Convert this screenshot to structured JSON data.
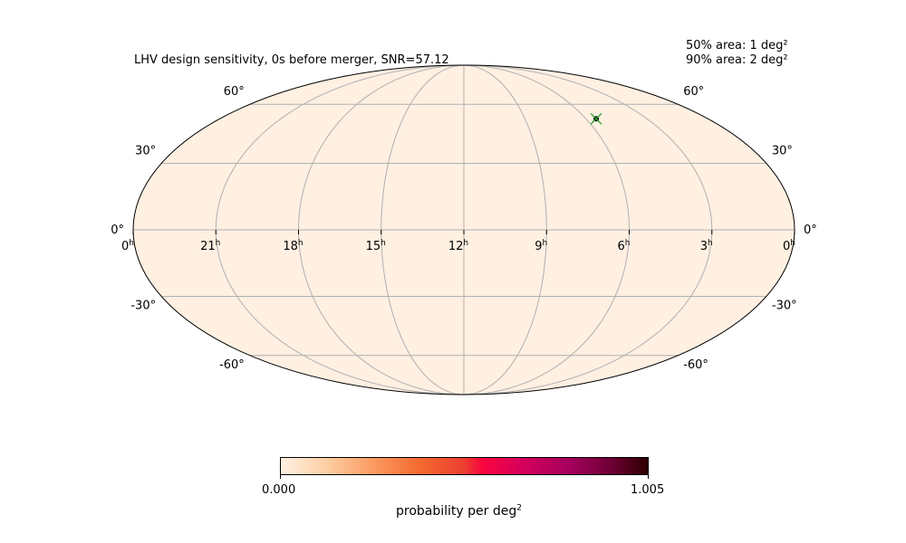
{
  "title": "LHV design sensitivity, 0s before merger, SNR=57.12",
  "areas": {
    "p50": "50% area: 1 deg²",
    "p90": "90% area: 2 deg²"
  },
  "map": {
    "projection": "mollweide",
    "fill_color": "#fff0e2",
    "grid_color": "#b0b0b0",
    "dec_left_labels": [
      "60°",
      "30°",
      "0°",
      "-30°",
      "-60°"
    ],
    "dec_right_labels": [
      "60°",
      "30°",
      "0°",
      "-30°",
      "-60°"
    ],
    "ra_labels": [
      {
        "major": "0",
        "sup": "h"
      },
      {
        "major": "21",
        "sup": "h"
      },
      {
        "major": "18",
        "sup": "h"
      },
      {
        "major": "15",
        "sup": "h"
      },
      {
        "major": "12",
        "sup": "h"
      },
      {
        "major": "9",
        "sup": "h"
      },
      {
        "major": "6",
        "sup": "h"
      },
      {
        "major": "3",
        "sup": "h"
      },
      {
        "major": "0",
        "sup": "h"
      }
    ],
    "source": {
      "ra_hours": 5.5,
      "dec_deg": 52,
      "marker": "x",
      "marker_color": "#2ca02c",
      "dot_color": "#000000"
    }
  },
  "colorbar": {
    "min_label": "0.000",
    "max_label": "1.005",
    "label_main": "probability per deg",
    "label_sup": "2",
    "colormap": "reverse-sunset (light peach to dark red)"
  }
}
